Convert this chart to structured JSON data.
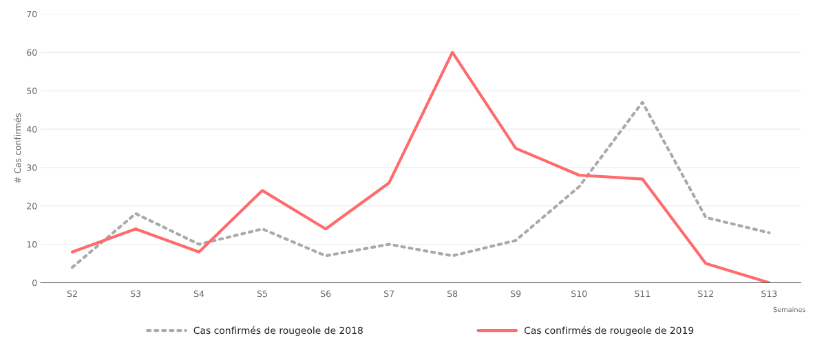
{
  "chart_data": {
    "type": "line",
    "xlabel": "Semaines",
    "ylabel": "# Cas confirmés",
    "categories": [
      "S2",
      "S3",
      "S4",
      "S5",
      "S6",
      "S7",
      "S8",
      "S9",
      "S10",
      "S11",
      "S12",
      "S13"
    ],
    "ylim": [
      0,
      70
    ],
    "yticks": [
      0,
      10,
      20,
      30,
      40,
      50,
      60,
      70
    ],
    "grid": "y",
    "legend": "bottom",
    "series": [
      {
        "name": "Cas confirmés de rougeole de 2018",
        "color": "#aaaaaa",
        "line_style": "dotted",
        "values": [
          4,
          18,
          10,
          14,
          7,
          10,
          7,
          11,
          25,
          47,
          17,
          13
        ]
      },
      {
        "name": "Cas confirmés de rougeole de 2019",
        "color": "#ff6b6b",
        "line_style": "solid",
        "values": [
          8,
          14,
          8,
          24,
          14,
          26,
          60,
          35,
          28,
          27,
          5,
          0
        ]
      }
    ]
  }
}
